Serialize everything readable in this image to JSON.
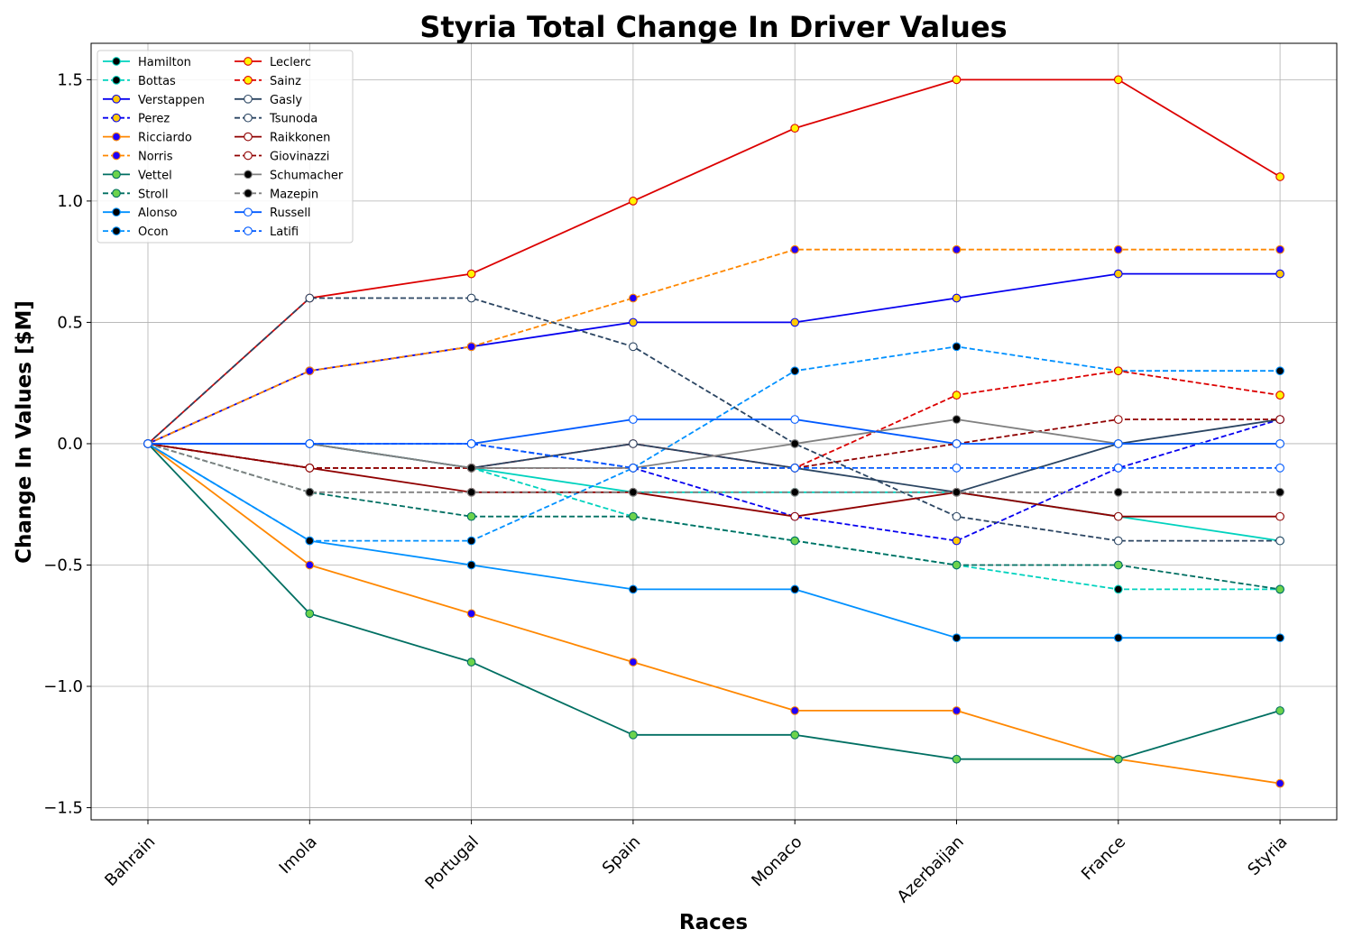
{
  "chart_data": {
    "type": "line",
    "title": "Styria Total Change In Driver Values",
    "xlabel": "Races",
    "ylabel": "Change In Values [$M]",
    "categories": [
      "Bahrain",
      "Imola",
      "Portugal",
      "Spain",
      "Monaco",
      "Azerbaijan",
      "France",
      "Styria"
    ],
    "ylim": [
      -1.55,
      1.65
    ],
    "yticks": [
      -1.5,
      -1.0,
      -0.5,
      0.0,
      0.5,
      1.0,
      1.5
    ],
    "ytick_labels": [
      "−1.5",
      "−1.0",
      "−0.5",
      "0.0",
      "0.5",
      "1.0",
      "1.5"
    ],
    "grid": true,
    "legend_position": "top-left",
    "legend_columns": 2,
    "series": [
      {
        "name": "Hamilton",
        "color": "#00D2BE",
        "dash": "solid",
        "marker": "#000000",
        "values": [
          0,
          0,
          -0.1,
          -0.2,
          -0.2,
          -0.2,
          -0.3,
          -0.4
        ]
      },
      {
        "name": "Bottas",
        "color": "#00D2BE",
        "dash": "dashed",
        "marker": "#000000",
        "values": [
          0,
          -0.1,
          -0.1,
          -0.3,
          -0.4,
          -0.5,
          -0.6,
          -0.6
        ]
      },
      {
        "name": "Verstappen",
        "color": "#0600EF",
        "dash": "solid",
        "marker": "#FFC906",
        "values": [
          0,
          0.3,
          0.4,
          0.5,
          0.5,
          0.6,
          0.7,
          0.7
        ]
      },
      {
        "name": "Perez",
        "color": "#0600EF",
        "dash": "dashed",
        "marker": "#FFC906",
        "values": [
          0,
          0,
          0,
          -0.1,
          -0.3,
          -0.4,
          -0.1,
          0.1
        ]
      },
      {
        "name": "Ricciardo",
        "color": "#FF8700",
        "dash": "solid",
        "marker": "#1E00FF",
        "values": [
          0,
          -0.5,
          -0.7,
          -0.9,
          -1.1,
          -1.1,
          -1.3,
          -1.4
        ]
      },
      {
        "name": "Norris",
        "color": "#FF8700",
        "dash": "dashed",
        "marker": "#1E00FF",
        "values": [
          0,
          0.3,
          0.4,
          0.6,
          0.8,
          0.8,
          0.8,
          0.8
        ]
      },
      {
        "name": "Vettel",
        "color": "#006F62",
        "dash": "solid",
        "marker": "#6CD34C",
        "values": [
          0,
          -0.7,
          -0.9,
          -1.2,
          -1.2,
          -1.3,
          -1.3,
          -1.1
        ]
      },
      {
        "name": "Stroll",
        "color": "#006F62",
        "dash": "dashed",
        "marker": "#6CD34C",
        "values": [
          0,
          -0.2,
          -0.3,
          -0.3,
          -0.4,
          -0.5,
          -0.5,
          -0.6
        ]
      },
      {
        "name": "Alonso",
        "color": "#0090FF",
        "dash": "solid",
        "marker": "#000000",
        "values": [
          0,
          -0.4,
          -0.5,
          -0.6,
          -0.6,
          -0.8,
          -0.8,
          -0.8
        ]
      },
      {
        "name": "Ocon",
        "color": "#0090FF",
        "dash": "dashed",
        "marker": "#000000",
        "values": [
          0,
          -0.4,
          -0.4,
          -0.1,
          0.3,
          0.4,
          0.3,
          0.3
        ]
      },
      {
        "name": "Leclerc",
        "color": "#DC0000",
        "dash": "solid",
        "marker": "#FFF500",
        "values": [
          0,
          0.6,
          0.7,
          1.0,
          1.3,
          1.5,
          1.5,
          1.1
        ]
      },
      {
        "name": "Sainz",
        "color": "#DC0000",
        "dash": "dashed",
        "marker": "#FFF500",
        "values": [
          0,
          -0.1,
          -0.1,
          0,
          -0.1,
          0.2,
          0.3,
          0.2
        ]
      },
      {
        "name": "Gasly",
        "color": "#2B4562",
        "dash": "solid",
        "marker": "#FFFFFF",
        "values": [
          0,
          0,
          -0.1,
          0,
          -0.1,
          -0.2,
          0,
          0.1
        ]
      },
      {
        "name": "Tsunoda",
        "color": "#2B4562",
        "dash": "dashed",
        "marker": "#FFFFFF",
        "values": [
          0,
          0.6,
          0.6,
          0.4,
          0,
          -0.3,
          -0.4,
          -0.4
        ]
      },
      {
        "name": "Raikkonen",
        "color": "#900000",
        "dash": "solid",
        "marker": "#FFFFFF",
        "values": [
          0,
          -0.1,
          -0.2,
          -0.2,
          -0.3,
          -0.2,
          -0.3,
          -0.3
        ]
      },
      {
        "name": "Giovinazzi",
        "color": "#900000",
        "dash": "dashed",
        "marker": "#FFFFFF",
        "values": [
          0,
          -0.1,
          -0.1,
          -0.1,
          -0.1,
          0,
          0.1,
          0.1
        ]
      },
      {
        "name": "Schumacher",
        "color": "#808080",
        "dash": "solid",
        "marker": "#000000",
        "values": [
          0,
          0,
          -0.1,
          -0.1,
          0,
          0.1,
          0,
          0
        ]
      },
      {
        "name": "Mazepin",
        "color": "#808080",
        "dash": "dashed",
        "marker": "#000000",
        "values": [
          0,
          -0.2,
          -0.2,
          -0.2,
          -0.2,
          -0.2,
          -0.2,
          -0.2
        ]
      },
      {
        "name": "Russell",
        "color": "#005AFF",
        "dash": "solid",
        "marker": "#FFFFFF",
        "values": [
          0,
          0,
          0,
          0.1,
          0.1,
          0,
          0,
          0
        ]
      },
      {
        "name": "Latifi",
        "color": "#005AFF",
        "dash": "dashed",
        "marker": "#FFFFFF",
        "values": [
          0,
          0,
          0,
          -0.1,
          -0.1,
          -0.1,
          -0.1,
          -0.1
        ]
      }
    ]
  }
}
